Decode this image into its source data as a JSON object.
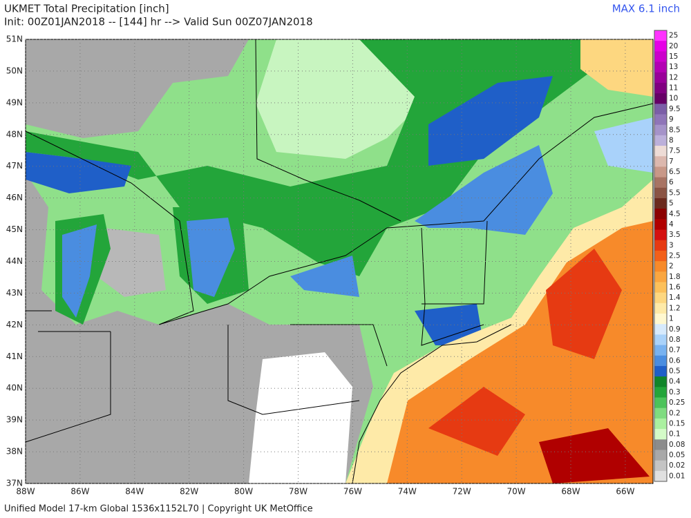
{
  "header": {
    "title": "UKMET Total Precipitation [inch]",
    "subtitle": "Init: 00Z01JAN2018 -- [144] hr --> Valid Sun 00Z07JAN2018",
    "max": "MAX 6.1 inch"
  },
  "map": {
    "lat_labels": [
      "51N",
      "50N",
      "49N",
      "48N",
      "47N",
      "46N",
      "45N",
      "44N",
      "43N",
      "42N",
      "41N",
      "40N",
      "39N",
      "38N",
      "37N"
    ],
    "lon_labels": [
      "88W",
      "86W",
      "84W",
      "82W",
      "80W",
      "78W",
      "76W",
      "74W",
      "72W",
      "70W",
      "68W",
      "66W"
    ]
  },
  "colorbar": {
    "labels": [
      "25",
      "20",
      "15",
      "13",
      "12",
      "11",
      "10",
      "9.5",
      "9",
      "8.5",
      "8",
      "7.5",
      "7",
      "6.5",
      "6",
      "5.5",
      "5",
      "4.5",
      "4",
      "3.5",
      "3",
      "2.5",
      "2",
      "1.8",
      "1.6",
      "1.4",
      "1.2",
      "1",
      "0.9",
      "0.8",
      "0.7",
      "0.6",
      "0.5",
      "0.4",
      "0.3",
      "0.25",
      "0.2",
      "0.15",
      "0.1",
      "0.08",
      "0.05",
      "0.02",
      "0.01"
    ],
    "colors": [
      "#ff33ff",
      "#e600e6",
      "#cc00cc",
      "#b300b3",
      "#990099",
      "#800080",
      "#660066",
      "#7b5ea7",
      "#8f75b8",
      "#a593c9",
      "#bcb0da",
      "#eedcd6",
      "#dcb8ae",
      "#c89888",
      "#a87464",
      "#8a5444",
      "#6b2a1e",
      "#8b0000",
      "#b00000",
      "#d41010",
      "#e63a12",
      "#f2601a",
      "#f78a2a",
      "#faa640",
      "#fcc05a",
      "#fdd780",
      "#feeaa8",
      "#fff8d0",
      "#d7eafc",
      "#a9d2fa",
      "#78b2f0",
      "#4a8de0",
      "#1f5fc8",
      "#11852a",
      "#23a53a",
      "#4cc35a",
      "#7fdc80",
      "#aaf0a0",
      "#d4fbc8",
      "#8c8c8c",
      "#a8a8a8",
      "#c4c4c4",
      "#e0e0e0"
    ]
  },
  "footer": "Unified Model 17-km Global 1536x1152L70 | Copyright UK MetOffice"
}
